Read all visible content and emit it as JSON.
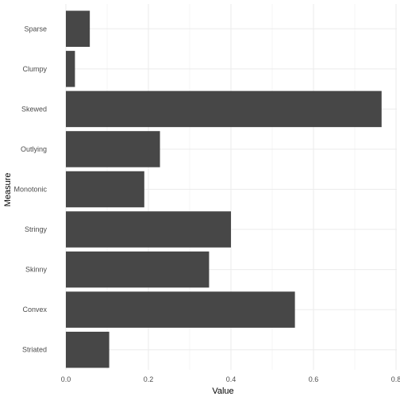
{
  "chart_data": {
    "type": "bar",
    "orientation": "horizontal",
    "categories": [
      "Striated",
      "Convex",
      "Skinny",
      "Stringy",
      "Monotonic",
      "Outlying",
      "Skewed",
      "Clumpy",
      "Sparse"
    ],
    "values": [
      0.105,
      0.555,
      0.347,
      0.4,
      0.19,
      0.228,
      0.765,
      0.022,
      0.058
    ],
    "xlabel": "Value",
    "ylabel": "Measure",
    "xlim": [
      0,
      0.8
    ],
    "xticks": [
      0.0,
      0.2,
      0.4,
      0.6,
      0.8
    ],
    "xtick_labels": [
      "0.0",
      "0.2",
      "0.4",
      "0.6",
      "0.8"
    ],
    "grid": true,
    "bar_color": "#474747",
    "grid_color": "#ebebeb"
  }
}
